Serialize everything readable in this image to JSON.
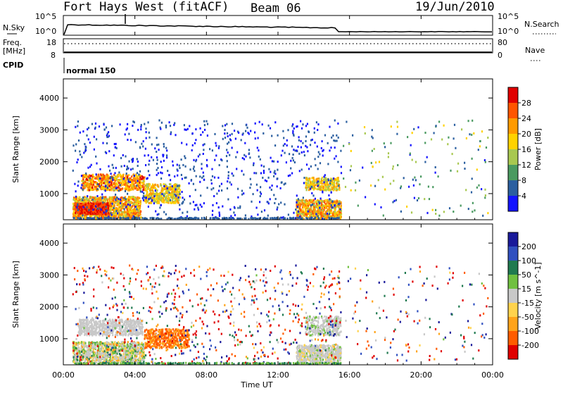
{
  "header": {
    "radar": "Fort Hays West (fitACF)",
    "beam": "Beam 06",
    "date": "19/Jun/2010"
  },
  "top_panel": {
    "left_label": "N.Sky",
    "left_ticks": [
      "10^5",
      "10^0"
    ],
    "right_label": "N.Search",
    "right_ticks": [
      "10^5",
      "10^0"
    ]
  },
  "freq_panel": {
    "left_label_1": "Freq.",
    "left_label_2": "[MHz]",
    "left_ticks": [
      "18",
      "8"
    ],
    "right_label": "Nave",
    "right_ticks": [
      "80",
      "0"
    ]
  },
  "cpid_panel": {
    "label": "CPID",
    "mode": "normal 150"
  },
  "x_axis": {
    "label": "Time UT",
    "ticks": [
      "00:00",
      "04:00",
      "08:00",
      "12:00",
      "16:00",
      "20:00",
      "00:00"
    ],
    "range_hours": [
      0,
      24
    ]
  },
  "y_axis": {
    "label": "Slant Range [km]",
    "ticks": [
      "1000",
      "2000",
      "3000",
      "4000"
    ],
    "range_km": [
      180,
      4600
    ]
  },
  "power_colorbar": {
    "label": "Power [dB]",
    "ticks": [
      "28",
      "24",
      "20",
      "16",
      "12",
      "8",
      "4"
    ],
    "colors": [
      "#e00000",
      "#ff5500",
      "#ff9a00",
      "#ffd200",
      "#a8c850",
      "#4a9a60",
      "#2b5fa0",
      "#1414ff"
    ]
  },
  "velocity_colorbar": {
    "label": "Velocity [m s^-1]",
    "ticks": [
      "200",
      "100",
      "50",
      "15",
      "-15",
      "-50",
      "-100",
      "-200"
    ],
    "colors": [
      "#1a1a9a",
      "#3050c0",
      "#207a50",
      "#70c040",
      "#c8c8c8",
      "#ffd34d",
      "#ffa31a",
      "#ff5c00",
      "#e00000"
    ]
  },
  "chart_data": {
    "type": "heatmap",
    "title": "Fort Hays West (fitACF)",
    "xlabel": "Time UT",
    "ylabel": "Slant Range [km]",
    "xlim": [
      0,
      24
    ],
    "ylim": [
      180,
      4600
    ],
    "panels": [
      {
        "name": "Power [dB]",
        "regions": [
          {
            "t": [
              0.5,
              4.3
            ],
            "r": [
              200,
              900
            ],
            "value": 20
          },
          {
            "t": [
              0.6,
              2.5
            ],
            "r": [
              350,
              700
            ],
            "value": 28
          },
          {
            "t": [
              1.0,
              4.5
            ],
            "r": [
              1100,
              1600
            ],
            "value": 22
          },
          {
            "t": [
              4.5,
              6.5
            ],
            "r": [
              700,
              1300
            ],
            "value": 18
          },
          {
            "t": [
              13.0,
              15.5
            ],
            "r": [
              200,
              800
            ],
            "value": 20
          },
          {
            "t": [
              13.5,
              15.4
            ],
            "r": [
              1100,
              1500
            ],
            "value": 18
          },
          {
            "t": [
              0.5,
              15.5
            ],
            "r": [
              200,
              3300
            ],
            "value": 4
          }
        ]
      },
      {
        "name": "Velocity [m s^-1]",
        "regions": [
          {
            "t": [
              0.5,
              4.5
            ],
            "r": [
              200,
              900
            ],
            "value": 0
          },
          {
            "t": [
              0.8,
              4.4
            ],
            "r": [
              1100,
              1600
            ],
            "value": 0
          },
          {
            "t": [
              4.5,
              7.0
            ],
            "r": [
              700,
              1300
            ],
            "value": -80
          },
          {
            "t": [
              13.0,
              15.5
            ],
            "r": [
              200,
              800
            ],
            "value": 0
          },
          {
            "t": [
              13.5,
              15.5
            ],
            "r": [
              1100,
              1700
            ],
            "value": 5
          },
          {
            "t": [
              0.5,
              15.5
            ],
            "r": [
              200,
              3300
            ],
            "value": -30
          }
        ]
      }
    ]
  }
}
